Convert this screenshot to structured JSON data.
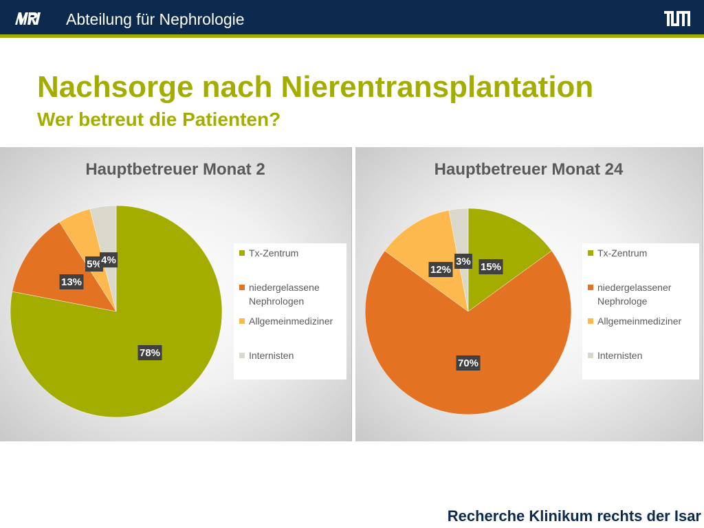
{
  "header": {
    "title": "Abteilung für Nephrologie"
  },
  "slide": {
    "title": "Nachsorge nach Nierentransplantation",
    "subtitle": "Wer betreut die Patienten?"
  },
  "footer": {
    "text": "Recherche Klinikum rechts der Isar"
  },
  "colors": {
    "header_bg": "#0b2a4e",
    "accent": "#a2ad00"
  },
  "chart_data": [
    {
      "type": "pie",
      "title": "Hauptbetreuer Monat 2",
      "legend_position": "right",
      "slices": [
        {
          "label": "Tx-Zentrum",
          "value": 78,
          "display": "78%",
          "color": "#a2ad00"
        },
        {
          "label": "niedergelassene Nephrologen",
          "value": 13,
          "display": "13%",
          "color": "#e37222"
        },
        {
          "label": "Allgemeinmediziner",
          "value": 5,
          "display": "5%",
          "color": "#fdb94e"
        },
        {
          "label": "Internisten",
          "value": 4,
          "display": "4%",
          "color": "#dad7cb"
        }
      ]
    },
    {
      "type": "pie",
      "title": "Hauptbetreuer Monat 24",
      "legend_position": "right",
      "slices": [
        {
          "label": "Tx-Zentrum",
          "value": 15,
          "display": "15%",
          "color": "#a2ad00"
        },
        {
          "label": "niedergelassener Nephrologe",
          "value": 70,
          "display": "70%",
          "color": "#e37222"
        },
        {
          "label": "Allgemeinmediziner",
          "value": 12,
          "display": "12%",
          "color": "#fdb94e"
        },
        {
          "label": "Internisten",
          "value": 3,
          "display": "3%",
          "color": "#dad7cb"
        }
      ]
    }
  ]
}
